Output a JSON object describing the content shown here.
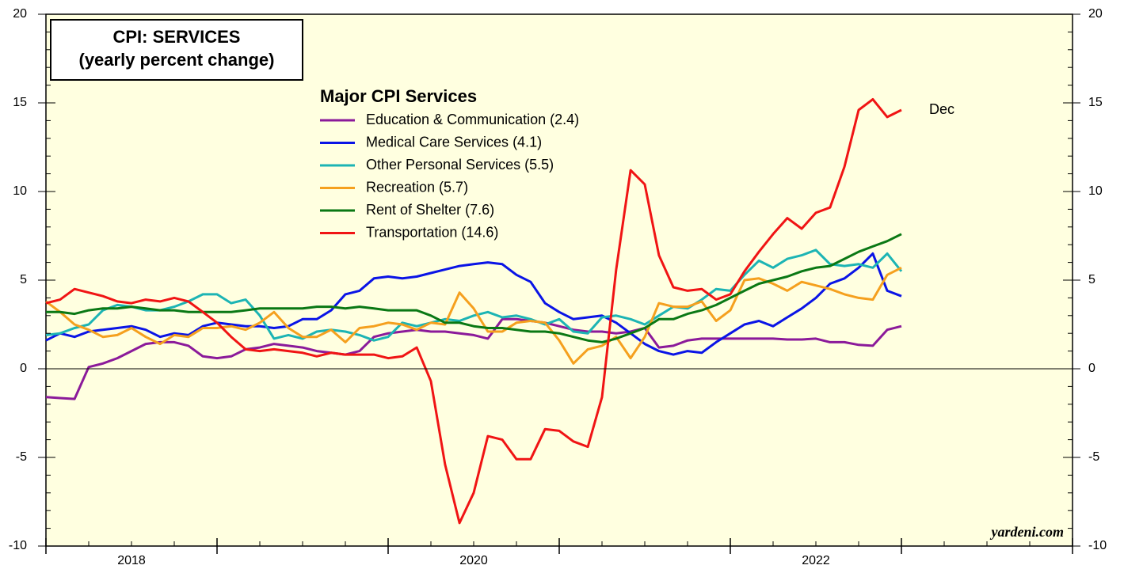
{
  "chart_data": {
    "type": "line",
    "title": "CPI: SERVICES",
    "subtitle": "(yearly percent change)",
    "legend_title": "Major CPI Services",
    "legend": "upper left",
    "annotations": [
      {
        "text": "Dec",
        "color": "#ff0000"
      },
      {
        "text": "yardeni.com"
      }
    ],
    "x": [
      2018,
      2018.083,
      2018.167,
      2018.25,
      2018.333,
      2018.417,
      2018.5,
      2018.583,
      2018.667,
      2018.75,
      2018.833,
      2018.917,
      2019,
      2019.083,
      2019.167,
      2019.25,
      2019.333,
      2019.417,
      2019.5,
      2019.583,
      2019.667,
      2019.75,
      2019.833,
      2019.917,
      2020,
      2020.083,
      2020.167,
      2020.25,
      2020.333,
      2020.417,
      2020.5,
      2020.583,
      2020.667,
      2020.75,
      2020.833,
      2020.917,
      2021,
      2021.083,
      2021.167,
      2021.25,
      2021.333,
      2021.417,
      2021.5,
      2021.583,
      2021.667,
      2021.75,
      2021.833,
      2021.917,
      2022,
      2022.083,
      2022.167,
      2022.25,
      2022.333,
      2022.417,
      2022.5,
      2022.583,
      2022.667,
      2022.75,
      2022.833,
      2022.917,
      2023
    ],
    "xlim": [
      2018,
      2024
    ],
    "xticks": [
      2018,
      2019,
      2020,
      2021,
      2022,
      2023,
      2024
    ],
    "xtick_labels": [
      {
        "value": 2018.5,
        "label": "2018"
      },
      {
        "value": 2020.5,
        "label": "2020"
      },
      {
        "value": 2022.5,
        "label": "2022"
      }
    ],
    "ylim": [
      -10,
      20
    ],
    "yticks": [
      -10,
      -5,
      0,
      5,
      10,
      15,
      20
    ],
    "y2lim": [
      -10,
      20
    ],
    "y2ticks": [
      -10,
      -5,
      0,
      5,
      10,
      15,
      20
    ],
    "grid": false,
    "series": [
      {
        "name": "Education & Communication (2.4)",
        "color": "#8b1a9a",
        "values": [
          -1.6,
          -1.65,
          -1.7,
          0.1,
          0.3,
          0.6,
          1.0,
          1.4,
          1.5,
          1.5,
          1.3,
          0.7,
          0.6,
          0.7,
          1.1,
          1.2,
          1.4,
          1.3,
          1.2,
          1.0,
          0.9,
          0.8,
          1.0,
          1.8,
          2.0,
          2.1,
          2.2,
          2.1,
          2.1,
          2.0,
          1.9,
          1.7,
          2.8,
          2.8,
          2.7,
          2.6,
          2.4,
          2.2,
          2.1,
          2.1,
          2.0,
          2.1,
          2.3,
          1.2,
          1.3,
          1.6,
          1.7,
          1.7,
          1.7,
          1.7,
          1.7,
          1.7,
          1.65,
          1.65,
          1.7,
          1.5,
          1.5,
          1.35,
          1.3,
          2.2,
          2.4
        ]
      },
      {
        "name": "Medical Care Services (4.1)",
        "color": "#0a14e6",
        "values": [
          1.6,
          2.0,
          1.8,
          2.1,
          2.2,
          2.3,
          2.4,
          2.2,
          1.8,
          2.0,
          1.9,
          2.4,
          2.6,
          2.5,
          2.4,
          2.4,
          2.3,
          2.4,
          2.8,
          2.8,
          3.3,
          4.2,
          4.4,
          5.1,
          5.2,
          5.1,
          5.2,
          5.4,
          5.6,
          5.8,
          5.9,
          6.0,
          5.9,
          5.3,
          4.9,
          3.7,
          3.2,
          2.8,
          2.9,
          3.0,
          2.6,
          2.0,
          1.4,
          1.0,
          0.8,
          1.0,
          0.9,
          1.5,
          2.0,
          2.5,
          2.7,
          2.4,
          2.9,
          3.4,
          4.0,
          4.8,
          5.1,
          5.7,
          6.5,
          4.4,
          4.1
        ]
      },
      {
        "name": "Other Personal Services (5.5)",
        "color": "#1cb4b4",
        "values": [
          1.9,
          2.0,
          2.3,
          2.5,
          3.3,
          3.6,
          3.5,
          3.3,
          3.3,
          3.5,
          3.8,
          4.2,
          4.2,
          3.7,
          3.9,
          3.0,
          1.7,
          1.9,
          1.7,
          2.1,
          2.2,
          2.1,
          1.9,
          1.6,
          1.8,
          2.6,
          2.4,
          2.6,
          2.8,
          2.7,
          3.0,
          3.2,
          2.9,
          3.0,
          2.8,
          2.5,
          2.8,
          2.1,
          2.0,
          2.9,
          3.0,
          2.8,
          2.5,
          3.0,
          3.5,
          3.4,
          3.9,
          4.5,
          4.4,
          5.3,
          6.1,
          5.7,
          6.2,
          6.4,
          6.7,
          5.9,
          5.8,
          5.9,
          5.7,
          6.5,
          5.5
        ]
      },
      {
        "name": "Recreation (5.7)",
        "color": "#f5a01e",
        "values": [
          3.8,
          3.2,
          2.5,
          2.2,
          1.8,
          1.9,
          2.3,
          1.8,
          1.4,
          1.9,
          1.8,
          2.3,
          2.3,
          2.4,
          2.2,
          2.6,
          3.2,
          2.3,
          1.8,
          1.8,
          2.2,
          1.5,
          2.3,
          2.4,
          2.6,
          2.5,
          2.2,
          2.6,
          2.5,
          4.3,
          3.4,
          2.1,
          2.1,
          2.6,
          2.7,
          2.6,
          1.6,
          0.3,
          1.1,
          1.3,
          1.8,
          0.6,
          1.8,
          3.7,
          3.5,
          3.5,
          3.8,
          2.7,
          3.3,
          5.0,
          5.1,
          4.8,
          4.4,
          4.9,
          4.7,
          4.5,
          4.2,
          4.0,
          3.9,
          5.3,
          5.7
        ]
      },
      {
        "name": "Rent of Shelter (7.6)",
        "color": "#0a7814",
        "values": [
          3.2,
          3.2,
          3.1,
          3.3,
          3.4,
          3.4,
          3.5,
          3.4,
          3.3,
          3.3,
          3.2,
          3.2,
          3.2,
          3.2,
          3.3,
          3.4,
          3.4,
          3.4,
          3.4,
          3.5,
          3.5,
          3.4,
          3.5,
          3.4,
          3.3,
          3.3,
          3.3,
          3.0,
          2.6,
          2.6,
          2.4,
          2.3,
          2.3,
          2.2,
          2.1,
          2.1,
          2.0,
          1.8,
          1.6,
          1.5,
          1.7,
          2.0,
          2.3,
          2.8,
          2.8,
          3.1,
          3.3,
          3.6,
          4.0,
          4.4,
          4.8,
          5.0,
          5.2,
          5.5,
          5.7,
          5.8,
          6.2,
          6.6,
          6.9,
          7.2,
          7.6
        ]
      },
      {
        "name": "Transportation (14.6)",
        "color": "#f01414",
        "values": [
          3.7,
          3.9,
          4.5,
          4.3,
          4.1,
          3.8,
          3.7,
          3.9,
          3.8,
          4.0,
          3.8,
          3.2,
          2.6,
          1.8,
          1.1,
          1.0,
          1.1,
          1.0,
          0.9,
          0.7,
          0.9,
          0.8,
          0.8,
          0.8,
          0.6,
          0.7,
          1.2,
          -0.7,
          -5.4,
          -8.7,
          -7.0,
          -3.8,
          -4.0,
          -5.1,
          -5.1,
          -3.4,
          -3.5,
          -4.1,
          -4.4,
          -1.6,
          5.6,
          11.2,
          10.4,
          6.4,
          4.6,
          4.4,
          4.5,
          3.9,
          4.2,
          5.5,
          6.6,
          7.6,
          8.5,
          7.9,
          8.8,
          9.1,
          11.4,
          14.6,
          15.2,
          14.2,
          14.6
        ]
      }
    ]
  }
}
